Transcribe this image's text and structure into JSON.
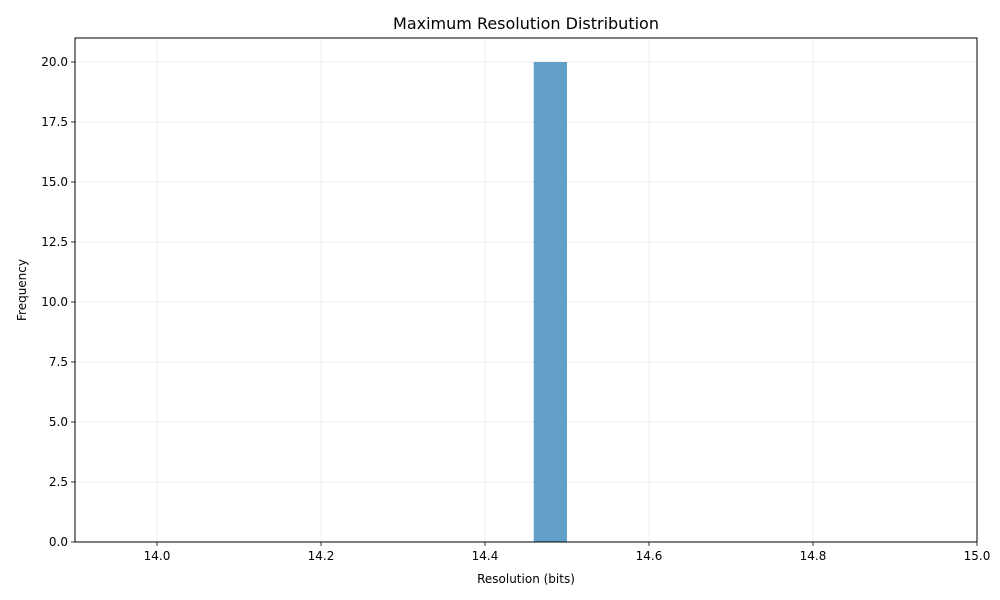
{
  "chart_data": {
    "type": "bar",
    "title": "Maximum Resolution Distribution",
    "xlabel": "Resolution (bits)",
    "ylabel": "Frequency",
    "xlim": [
      13.9,
      15.0
    ],
    "ylim": [
      0,
      21
    ],
    "x_ticks": [
      "14.0",
      "14.2",
      "14.4",
      "14.6",
      "14.8",
      "15.0"
    ],
    "y_ticks": [
      "0.0",
      "2.5",
      "5.0",
      "7.5",
      "10.0",
      "12.5",
      "15.0",
      "17.5",
      "20.0"
    ],
    "bins": [
      {
        "x_start": 14.4594,
        "x_end": 14.5,
        "count": 20
      }
    ],
    "grid": true,
    "bar_color": "#1f77b4",
    "bar_alpha": 0.7
  }
}
